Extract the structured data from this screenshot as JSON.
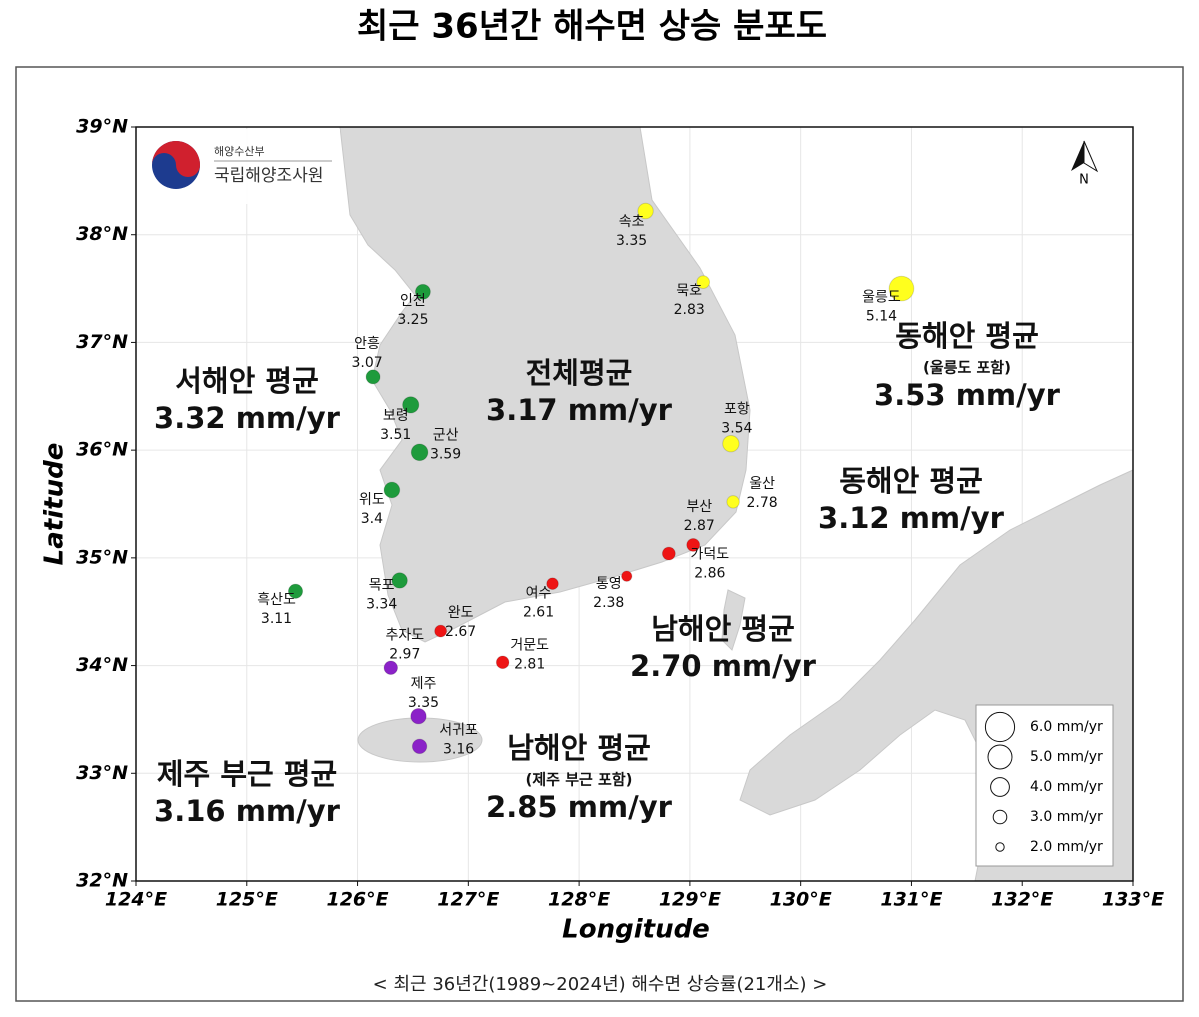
{
  "chart_data": {
    "type": "bubble",
    "title": "최근 36년간 해수면 상승 분포도",
    "caption": "< 최근 36년간(1989~2024년) 해수면 상승률(21개소) >",
    "xlabel": "Longitude",
    "ylabel": "Latitude",
    "xlim": [
      124,
      133
    ],
    "ylim": [
      32,
      39
    ],
    "xticks": [
      {
        "value": 124,
        "label": "124°E"
      },
      {
        "value": 125,
        "label": "125°E"
      },
      {
        "value": 126,
        "label": "126°E"
      },
      {
        "value": 127,
        "label": "127°E"
      },
      {
        "value": 128,
        "label": "128°E"
      },
      {
        "value": 129,
        "label": "129°E"
      },
      {
        "value": 130,
        "label": "130°E"
      },
      {
        "value": 131,
        "label": "131°E"
      },
      {
        "value": 132,
        "label": "132°E"
      },
      {
        "value": 133,
        "label": "133°E"
      }
    ],
    "yticks": [
      {
        "value": 32,
        "label": "32°N"
      },
      {
        "value": 33,
        "label": "33°N"
      },
      {
        "value": 34,
        "label": "34°N"
      },
      {
        "value": 35,
        "label": "35°N"
      },
      {
        "value": 36,
        "label": "36°N"
      },
      {
        "value": 37,
        "label": "37°N"
      },
      {
        "value": 38,
        "label": "38°N"
      },
      {
        "value": 39,
        "label": "39°N"
      }
    ],
    "grid": true,
    "series": [
      {
        "color": "#1e9b3c",
        "labels": [
          "흑산도",
          "목포",
          "위도",
          "군산",
          "보령",
          "안흥",
          "인천"
        ],
        "x": [
          125.44,
          126.38,
          126.31,
          126.56,
          126.48,
          126.14,
          126.59
        ],
        "y": [
          34.69,
          34.79,
          35.63,
          35.98,
          36.42,
          36.68,
          37.47
        ],
        "values": [
          3.11,
          3.34,
          3.4,
          3.59,
          3.51,
          3.07,
          3.25
        ]
      },
      {
        "color": "#ee1414",
        "labels": [
          "부산",
          "가덕도",
          "통영",
          "여수",
          "거문도",
          "완도"
        ],
        "x": [
          129.03,
          128.81,
          128.43,
          127.76,
          127.31,
          126.75
        ],
        "y": [
          35.12,
          35.04,
          34.83,
          34.76,
          34.03,
          34.32
        ],
        "values": [
          2.87,
          2.86,
          2.38,
          2.61,
          2.81,
          2.67
        ]
      },
      {
        "color": "#ffff1e",
        "labels": [
          "속초",
          "묵호",
          "울릉도",
          "포항",
          "울산"
        ],
        "x": [
          128.6,
          129.12,
          130.91,
          129.37,
          129.39
        ],
        "y": [
          38.22,
          37.56,
          37.5,
          36.06,
          35.52
        ],
        "values": [
          3.35,
          2.83,
          5.14,
          3.54,
          2.78
        ]
      },
      {
        "color": "#8b22c8",
        "labels": [
          "추자도",
          "제주",
          "서귀포"
        ],
        "x": [
          126.3,
          126.55,
          126.56
        ],
        "y": [
          33.98,
          33.53,
          33.25
        ],
        "values": [
          2.97,
          3.35,
          3.16
        ]
      }
    ],
    "annotations": [
      {
        "text": "서해안 평균",
        "value": 3.32,
        "value_label": "3.32 mm/yr"
      },
      {
        "text": "전체평균",
        "value": 3.17,
        "value_label": "3.17 mm/yr"
      },
      {
        "text": "동해안 평균",
        "note": "(울릉도 포함)",
        "value": 3.53,
        "value_label": "3.53 mm/yr"
      },
      {
        "text": "동해안 평균",
        "value": 3.12,
        "value_label": "3.12 mm/yr"
      },
      {
        "text": "남해안 평균",
        "value": 2.7,
        "value_label": "2.70 mm/yr"
      },
      {
        "text": "남해안 평균",
        "note": "(제주 부근 포함)",
        "value": 2.85,
        "value_label": "2.85 mm/yr"
      },
      {
        "text": "제주 부근 평균",
        "value": 3.16,
        "value_label": "3.16 mm/yr"
      }
    ],
    "size_legend": [
      {
        "value": 6.0,
        "label": "6.0 mm/yr"
      },
      {
        "value": 5.0,
        "label": "5.0 mm/yr"
      },
      {
        "value": 4.0,
        "label": "4.0 mm/yr"
      },
      {
        "value": 3.0,
        "label": "3.0 mm/yr"
      },
      {
        "value": 2.0,
        "label": "2.0 mm/yr"
      }
    ],
    "north_label": "N"
  },
  "logo": {
    "ministry": "해양수산부",
    "agency": "국립해양조사원"
  }
}
